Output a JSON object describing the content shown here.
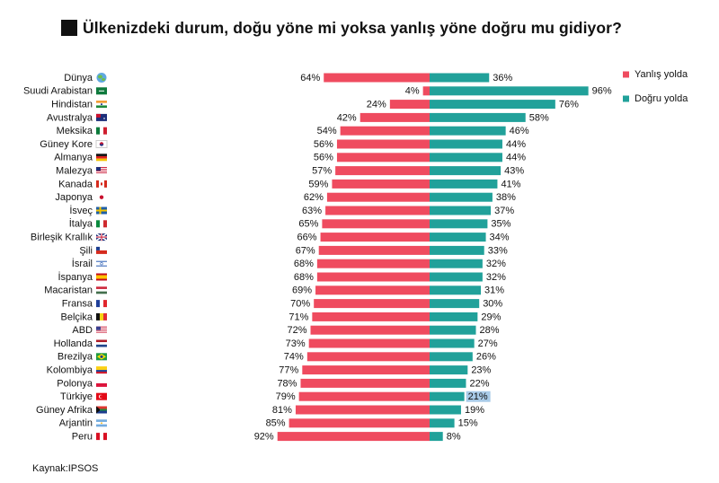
{
  "title": "Ülkenizdeki durum, doğu yöne mi yoksa yanlış yöne doğru mu gidiyor?",
  "source": "Kaynak:IPSOS",
  "colors": {
    "wrong": "#ef4b5f",
    "right": "#21a19a",
    "highlight": "#a9cbe8"
  },
  "chart_data": {
    "type": "bar",
    "orientation": "horizontal-diverging",
    "title": "Ülkenizdeki durum, doğu yöne mi yoksa yanlış yöne doğru mu gidiyor?",
    "categories": [
      "Dünya",
      "Suudi Arabistan",
      "Hindistan",
      "Avustralya",
      "Meksika",
      "Güney Kore",
      "Almanya",
      "Malezya",
      "Kanada",
      "Japonya",
      "İsveç",
      "İtalya",
      "Birleşik Krallık",
      "Şili",
      "İsrail",
      "İspanya",
      "Macaristan",
      "Fransa",
      "Belçika",
      "ABD",
      "Hollanda",
      "Brezilya",
      "Kolombiya",
      "Polonya",
      "Türkiye",
      "Güney Afrika",
      "Arjantin",
      "Peru"
    ],
    "series": [
      {
        "name": "Yanlış yolda",
        "color": "#ef4b5f",
        "values": [
          64,
          4,
          24,
          42,
          54,
          56,
          56,
          57,
          59,
          62,
          63,
          65,
          66,
          67,
          68,
          68,
          69,
          70,
          71,
          72,
          73,
          74,
          77,
          78,
          79,
          81,
          85,
          92
        ]
      },
      {
        "name": "Doğru yolda",
        "color": "#21a19a",
        "values": [
          36,
          96,
          76,
          58,
          46,
          44,
          44,
          43,
          41,
          38,
          37,
          35,
          34,
          33,
          32,
          32,
          31,
          30,
          29,
          28,
          27,
          26,
          23,
          22,
          21,
          19,
          15,
          8
        ]
      }
    ],
    "unit": "%",
    "highlight": {
      "category": "Türkiye",
      "series": "Doğru yolda"
    },
    "legend": "top-right",
    "grid": false,
    "xlim": [
      0,
      100
    ]
  },
  "flags": [
    "globe",
    "flag-sa",
    "flag-in",
    "flag-au",
    "flag-mx",
    "flag-kr",
    "flag-de",
    "flag-my",
    "flag-ca",
    "flag-jp",
    "flag-se",
    "flag-it",
    "flag-gb",
    "flag-cl",
    "flag-il",
    "flag-es",
    "flag-hu",
    "flag-fr",
    "flag-be",
    "flag-us",
    "flag-nl",
    "flag-br",
    "flag-co",
    "flag-pl",
    "flag-tr",
    "flag-za",
    "flag-ar",
    "flag-pe"
  ]
}
